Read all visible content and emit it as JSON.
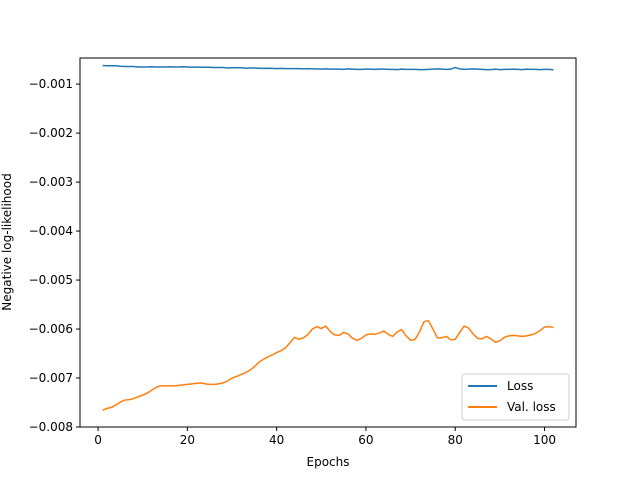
{
  "chart_data": {
    "type": "line",
    "title": "",
    "xlabel": "Epochs",
    "ylabel": "Negative log-likelihood",
    "xlim": [
      -4.05,
      107.05
    ],
    "ylim": [
      -0.008,
      -0.000467
    ],
    "xticks": [
      0,
      20,
      40,
      60,
      80,
      100
    ],
    "xtick_labels": [
      "0",
      "20",
      "40",
      "60",
      "80",
      "100"
    ],
    "yticks": [
      -0.001,
      -0.002,
      -0.003,
      -0.004,
      -0.005,
      -0.006,
      -0.007,
      -0.008
    ],
    "ytick_labels": [
      "−0.001",
      "−0.002",
      "−0.003",
      "−0.004",
      "−0.005",
      "−0.006",
      "−0.007",
      "−0.008"
    ],
    "grid": false,
    "legend_position": "lower-right",
    "x": [
      1,
      2,
      3,
      4,
      5,
      6,
      7,
      8,
      9,
      10,
      11,
      12,
      13,
      14,
      15,
      16,
      17,
      18,
      19,
      20,
      21,
      22,
      23,
      24,
      25,
      26,
      27,
      28,
      29,
      30,
      31,
      32,
      33,
      34,
      35,
      36,
      37,
      38,
      39,
      40,
      41,
      42,
      43,
      44,
      45,
      46,
      47,
      48,
      49,
      50,
      51,
      52,
      53,
      54,
      55,
      56,
      57,
      58,
      59,
      60,
      61,
      62,
      63,
      64,
      65,
      66,
      67,
      68,
      69,
      70,
      71,
      72,
      73,
      74,
      75,
      76,
      77,
      78,
      79,
      80,
      81,
      82,
      83,
      84,
      85,
      86,
      87,
      88,
      89,
      90,
      91,
      92,
      93,
      94,
      95,
      96,
      97,
      98,
      99,
      100,
      101,
      102
    ],
    "series": [
      {
        "name": "Loss",
        "color": "#1f77b4",
        "values": [
          -0.00062,
          -0.000625,
          -0.000625,
          -0.000625,
          -0.000635,
          -0.00064,
          -0.00064,
          -0.00064,
          -0.00065,
          -0.00065,
          -0.00065,
          -0.000645,
          -0.00065,
          -0.00065,
          -0.00065,
          -0.000645,
          -0.00065,
          -0.00065,
          -0.000645,
          -0.00065,
          -0.000655,
          -0.00065,
          -0.000655,
          -0.000655,
          -0.000655,
          -0.00066,
          -0.00066,
          -0.00066,
          -0.00067,
          -0.000665,
          -0.000665,
          -0.000665,
          -0.000675,
          -0.00067,
          -0.00067,
          -0.000675,
          -0.00068,
          -0.000675,
          -0.00068,
          -0.000685,
          -0.00068,
          -0.000685,
          -0.000685,
          -0.000685,
          -0.000685,
          -0.00069,
          -0.000685,
          -0.00069,
          -0.00069,
          -0.000695,
          -0.00069,
          -0.000695,
          -0.000695,
          -0.000695,
          -0.0007,
          -0.00069,
          -0.000695,
          -0.0007,
          -0.0007,
          -0.000695,
          -0.000695,
          -0.0007,
          -0.000695,
          -0.000695,
          -0.0007,
          -0.0007,
          -0.000705,
          -0.000695,
          -0.0007,
          -0.0007,
          -0.0007,
          -0.000705,
          -0.000705,
          -0.0007,
          -0.000695,
          -0.00069,
          -0.000695,
          -0.0007,
          -0.000695,
          -0.00066,
          -0.00069,
          -0.0007,
          -0.000695,
          -0.00069,
          -0.000695,
          -0.0007,
          -0.000705,
          -0.000705,
          -0.000695,
          -0.000705,
          -0.0007,
          -0.0007,
          -0.000695,
          -0.0007,
          -0.000705,
          -0.000695,
          -0.0007,
          -0.0007,
          -0.000705,
          -0.0007,
          -0.0007,
          -0.00071
        ]
      },
      {
        "name": "Val. loss",
        "color": "#ff7f0e",
        "values": [
          -0.00766,
          -0.00762,
          -0.0076,
          -0.00755,
          -0.00749,
          -0.00745,
          -0.00744,
          -0.00742,
          -0.00738,
          -0.00735,
          -0.00731,
          -0.00725,
          -0.00719,
          -0.00716,
          -0.00716,
          -0.00716,
          -0.00716,
          -0.00715,
          -0.00714,
          -0.00713,
          -0.00712,
          -0.00711,
          -0.0071,
          -0.00712,
          -0.00713,
          -0.00713,
          -0.00712,
          -0.0071,
          -0.00706,
          -0.007,
          -0.00697,
          -0.00693,
          -0.00689,
          -0.00684,
          -0.00677,
          -0.00668,
          -0.00662,
          -0.00657,
          -0.00653,
          -0.00648,
          -0.00644,
          -0.00638,
          -0.00628,
          -0.00617,
          -0.00621,
          -0.00618,
          -0.00611,
          -0.006,
          -0.00595,
          -0.00599,
          -0.00594,
          -0.00605,
          -0.00612,
          -0.00613,
          -0.00607,
          -0.0061,
          -0.00619,
          -0.00623,
          -0.00619,
          -0.00612,
          -0.0061,
          -0.00611,
          -0.00608,
          -0.00604,
          -0.00611,
          -0.00615,
          -0.00606,
          -0.00601,
          -0.00614,
          -0.00623,
          -0.00621,
          -0.00606,
          -0.00585,
          -0.00583,
          -0.006,
          -0.00618,
          -0.00618,
          -0.00615,
          -0.00622,
          -0.00621,
          -0.00607,
          -0.00594,
          -0.00598,
          -0.0061,
          -0.00619,
          -0.0062,
          -0.00615,
          -0.0062,
          -0.00627,
          -0.00624,
          -0.00617,
          -0.00614,
          -0.00613,
          -0.00614,
          -0.00615,
          -0.00614,
          -0.00612,
          -0.00609,
          -0.00603,
          -0.00596,
          -0.00595,
          -0.00597
        ]
      }
    ]
  }
}
